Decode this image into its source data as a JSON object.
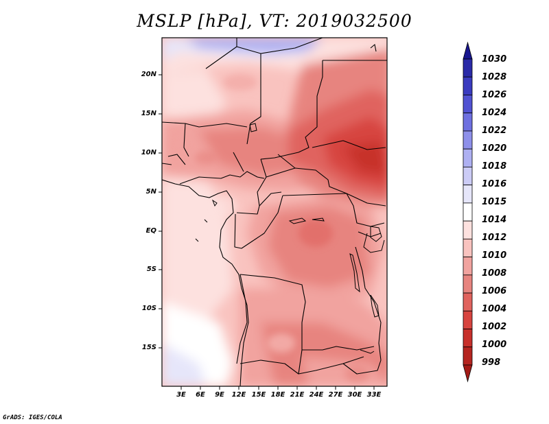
{
  "title": "MSLP [hPa], VT: 2019032500",
  "credit": "GrADS: IGES/COLA",
  "map": {
    "lat_labels": [
      "20N",
      "15N",
      "10N",
      "5N",
      "EQ",
      "5S",
      "10S",
      "15S"
    ],
    "lon_labels": [
      "3E",
      "6E",
      "9E",
      "12E",
      "15E",
      "18E",
      "21E",
      "24E",
      "27E",
      "30E",
      "33E"
    ],
    "field": "mean sea level pressure",
    "units": "hPa"
  },
  "colorbar": {
    "levels": [
      "1030",
      "1028",
      "1026",
      "1024",
      "1022",
      "1020",
      "1018",
      "1016",
      "1015",
      "1014",
      "1012",
      "1010",
      "1008",
      "1006",
      "1004",
      "1002",
      "1000",
      "998"
    ],
    "colors": [
      "#18168f",
      "#2a2aa8",
      "#3a3bbf",
      "#5152d2",
      "#6e70e0",
      "#8e90ea",
      "#aeb0f2",
      "#ccccf6",
      "#e6e6fa",
      "#ffffff",
      "#fde1df",
      "#f9c3bf",
      "#f1a39f",
      "#e7847f",
      "#e0635e",
      "#d7443f",
      "#c7302b",
      "#b52520",
      "#a31a16"
    ]
  }
}
